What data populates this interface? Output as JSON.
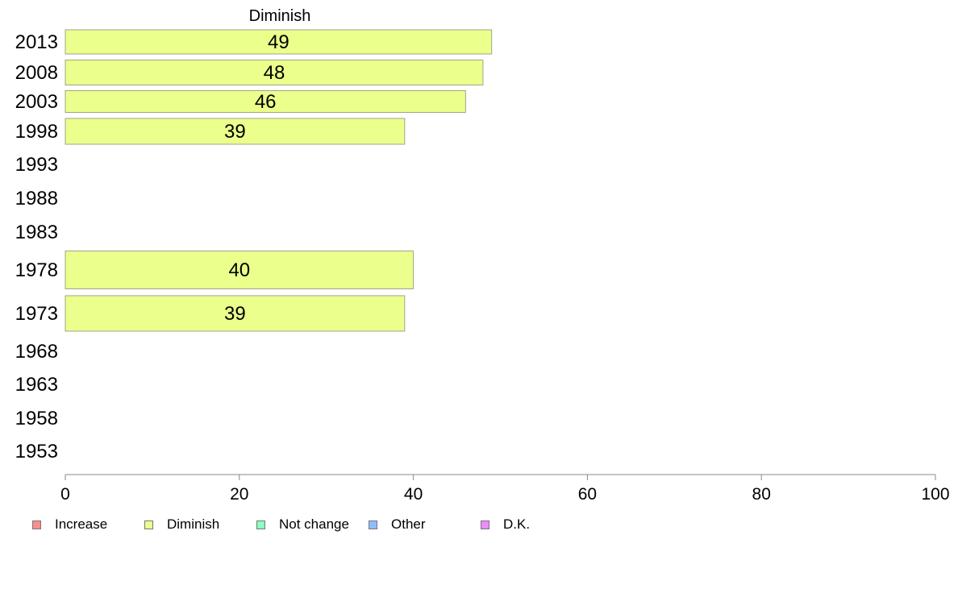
{
  "chart_data": {
    "type": "bar",
    "orientation": "horizontal",
    "title": "Diminish",
    "categories": [
      "2013",
      "2008",
      "2003",
      "1998",
      "1993",
      "1988",
      "1983",
      "1978",
      "1973",
      "1968",
      "1963",
      "1958",
      "1953"
    ],
    "series": [
      {
        "name": "Diminish",
        "values": [
          49,
          48,
          46,
          39,
          null,
          null,
          null,
          40,
          39,
          null,
          null,
          null,
          null
        ]
      }
    ],
    "data_labels": [
      "49",
      "48",
      "46",
      "39",
      "",
      "",
      "",
      "40",
      "39",
      "",
      "",
      "",
      ""
    ],
    "xlim": [
      0,
      100
    ],
    "xticks": [
      "0",
      "20",
      "40",
      "60",
      "80",
      "100"
    ],
    "grid": false,
    "legend_position": "bottom-left"
  },
  "legend": [
    {
      "label": "Increase",
      "color": "#ff8c8c"
    },
    {
      "label": "Diminish",
      "color": "#ebff8c"
    },
    {
      "label": "Not change",
      "color": "#8cffbe"
    },
    {
      "label": "Other",
      "color": "#8cbeff"
    },
    {
      "label": "D.K.",
      "color": "#eb8cff"
    }
  ],
  "colors": {
    "bar_fill": "#ebff8c",
    "bar_stroke": "#a3a38a",
    "axis": "#888888"
  }
}
